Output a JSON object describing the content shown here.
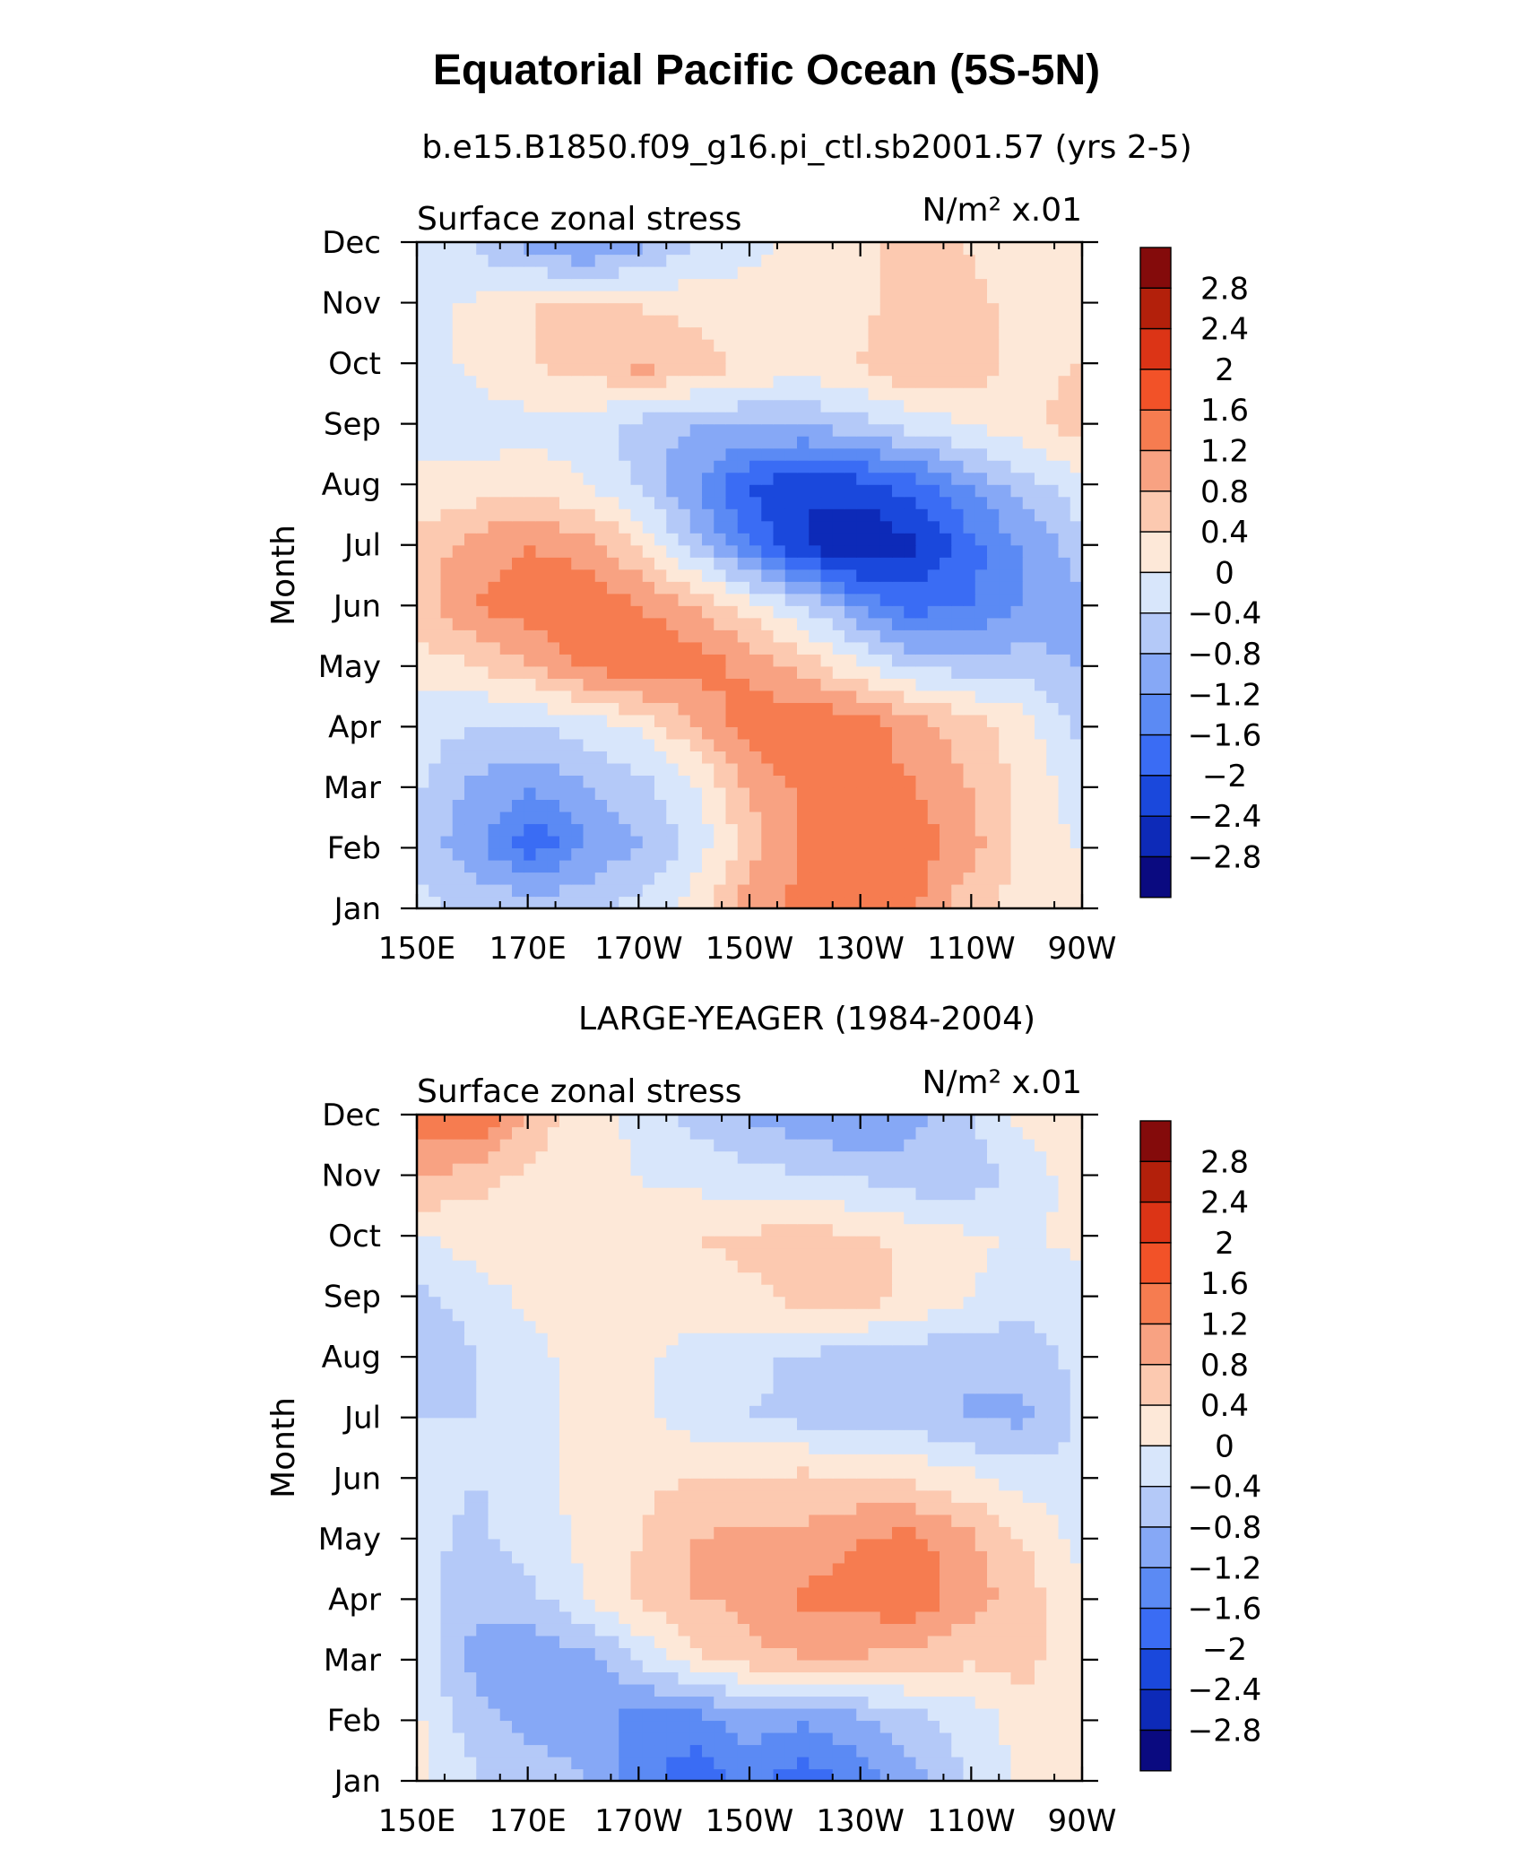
{
  "page": {
    "title": "Equatorial Pacific Ocean (5S-5N)"
  },
  "palette": [
    "#0a0a80",
    "#0d2ab8",
    "#1a48dc",
    "#3a6cf4",
    "#5b8af4",
    "#86a8f6",
    "#b4c9f8",
    "#d8e6fb",
    "#fde8d8",
    "#fcc9b0",
    "#f8a282",
    "#f67c50",
    "#f25228",
    "#dc3416",
    "#b3200b",
    "#840b0b"
  ],
  "chart_data": [
    {
      "type": "heatmap",
      "subtitle": "b.e15.B1850.f09_g16.pi_ctl.sb2001.57 (yrs 2-5)",
      "left_label": "Surface zonal stress",
      "units": "N/m² x.01",
      "ylabel": "Month",
      "x_ticks": [
        "150E",
        "170E",
        "170W",
        "150W",
        "130W",
        "110W",
        "90W"
      ],
      "y_ticks": [
        "Jan",
        "Feb",
        "Mar",
        "Apr",
        "May",
        "Jun",
        "Jul",
        "Aug",
        "Sep",
        "Oct",
        "Nov",
        "Dec"
      ],
      "colorbar_labels": [
        "2.8",
        "2.4",
        "2",
        "1.6",
        "1.2",
        "0.8",
        "0.4",
        "0",
        "−0.4",
        "−0.8",
        "−1.2",
        "−1.6",
        "−2",
        "−2.4",
        "−2.8"
      ],
      "levels": [
        -2.8,
        -2.4,
        -2,
        -1.6,
        -1.2,
        -0.8,
        -0.4,
        0,
        0.4,
        0.8,
        1.2,
        1.6,
        2,
        2.4,
        2.8
      ],
      "x": [
        150,
        160,
        170,
        180,
        190,
        200,
        210,
        220,
        230,
        240,
        250,
        260,
        270
      ],
      "y": [
        "Jan",
        "Feb",
        "Mar",
        "Apr",
        "May",
        "Jun",
        "Jul",
        "Aug",
        "Sep",
        "Oct",
        "Nov",
        "Dec"
      ],
      "z": [
        [
          -0.3,
          -0.6,
          -0.6,
          -0.6,
          -0.3,
          0.2,
          1.0,
          1.3,
          1.4,
          1.3,
          0.6,
          0.2,
          0.0
        ],
        [
          -0.6,
          -1.1,
          -1.9,
          -1.2,
          -0.8,
          -0.3,
          0.6,
          1.3,
          1.6,
          1.4,
          1.0,
          0.3,
          0.0
        ],
        [
          -0.4,
          -0.9,
          -1.1,
          -0.8,
          -0.5,
          0.0,
          0.9,
          1.3,
          1.4,
          1.2,
          0.8,
          0.3,
          -0.2
        ],
        [
          -0.2,
          -0.4,
          -0.4,
          -0.2,
          0.1,
          0.8,
          1.4,
          1.6,
          1.4,
          1.0,
          0.6,
          0.2,
          -0.5
        ],
        [
          0.2,
          0.4,
          0.8,
          1.3,
          1.6,
          1.4,
          1.1,
          0.6,
          0.0,
          -0.5,
          -0.6,
          -0.6,
          -0.8
        ],
        [
          0.7,
          1.2,
          1.5,
          1.5,
          1.2,
          0.8,
          0.2,
          -0.4,
          -1.2,
          -1.8,
          -1.6,
          -1.2,
          -1.0
        ],
        [
          0.6,
          1.0,
          1.2,
          1.0,
          0.4,
          -0.6,
          -1.6,
          -2.4,
          -2.9,
          -2.5,
          -1.8,
          -1.2,
          -0.6
        ],
        [
          0.1,
          0.2,
          0.3,
          0.0,
          -0.5,
          -1.2,
          -2.0,
          -2.4,
          -2.2,
          -1.8,
          -1.2,
          -0.6,
          -0.2
        ],
        [
          -0.2,
          -0.2,
          -0.2,
          -0.2,
          -0.6,
          -0.8,
          -0.8,
          -0.8,
          -0.6,
          -0.3,
          0.0,
          0.2,
          0.6
        ],
        [
          -0.2,
          0.1,
          0.4,
          0.5,
          0.9,
          0.6,
          0.3,
          0.2,
          0.4,
          0.8,
          0.6,
          0.3,
          0.4
        ],
        [
          -0.1,
          0.1,
          0.4,
          0.5,
          0.4,
          0.3,
          0.2,
          0.1,
          0.3,
          0.6,
          0.5,
          0.3,
          0.2
        ],
        [
          -0.2,
          -0.4,
          -0.9,
          -1.2,
          -0.8,
          -0.4,
          -0.1,
          0.1,
          0.3,
          0.5,
          0.4,
          0.2,
          0.1
        ]
      ]
    },
    {
      "type": "heatmap",
      "subtitle": "LARGE-YEAGER (1984-2004)",
      "left_label": "Surface zonal stress",
      "units": "N/m² x.01",
      "ylabel": "Month",
      "x_ticks": [
        "150E",
        "170E",
        "170W",
        "150W",
        "130W",
        "110W",
        "90W"
      ],
      "y_ticks": [
        "Jan",
        "Feb",
        "Mar",
        "Apr",
        "May",
        "Jun",
        "Jul",
        "Aug",
        "Sep",
        "Oct",
        "Nov",
        "Dec"
      ],
      "colorbar_labels": [
        "2.8",
        "2.4",
        "2",
        "1.6",
        "1.2",
        "0.8",
        "0.4",
        "0",
        "−0.4",
        "−0.8",
        "−1.2",
        "−1.6",
        "−2",
        "−2.4",
        "−2.8"
      ],
      "levels": [
        -2.8,
        -2.4,
        -2,
        -1.6,
        -1.2,
        -0.8,
        -0.4,
        0,
        0.4,
        0.8,
        1.2,
        1.6,
        2,
        2.4,
        2.8
      ],
      "x": [
        150,
        160,
        170,
        180,
        190,
        200,
        210,
        220,
        230,
        240,
        250,
        260,
        270
      ],
      "y": [
        "Jan",
        "Feb",
        "Mar",
        "Apr",
        "May",
        "Jun",
        "Jul",
        "Aug",
        "Sep",
        "Oct",
        "Nov",
        "Dec"
      ],
      "z": [
        [
          0.1,
          -0.4,
          -0.6,
          -0.8,
          -1.4,
          -1.9,
          -1.4,
          -1.8,
          -1.4,
          -0.9,
          -0.4,
          0.1,
          0.1
        ],
        [
          0.0,
          -0.7,
          -1.0,
          -1.1,
          -1.3,
          -1.3,
          -1.0,
          -1.1,
          -0.8,
          -0.5,
          -0.2,
          0.2,
          0.2
        ],
        [
          -0.2,
          -1.0,
          -1.1,
          -0.9,
          -0.3,
          0.3,
          0.7,
          0.8,
          0.8,
          0.7,
          0.5,
          0.6,
          0.1
        ],
        [
          -0.3,
          -0.6,
          -0.5,
          0.0,
          0.5,
          0.8,
          0.9,
          1.3,
          1.4,
          1.5,
          1.0,
          0.6,
          0.1
        ],
        [
          -0.3,
          -0.5,
          -0.2,
          0.1,
          0.4,
          0.8,
          0.9,
          0.9,
          1.2,
          1.3,
          0.9,
          0.4,
          -0.1
        ],
        [
          -0.3,
          -0.4,
          -0.1,
          0.1,
          0.3,
          0.4,
          0.4,
          0.5,
          0.4,
          0.3,
          0.1,
          -0.2,
          -0.3
        ],
        [
          -0.4,
          -0.4,
          -0.1,
          0.1,
          0.1,
          -0.2,
          -0.4,
          -0.5,
          -0.6,
          -0.6,
          -0.8,
          -0.9,
          -0.4
        ],
        [
          -0.8,
          -0.4,
          -0.1,
          0.1,
          0.1,
          -0.2,
          -0.3,
          -0.5,
          -0.6,
          -0.7,
          -0.8,
          -0.7,
          -0.3
        ],
        [
          -0.5,
          -0.2,
          0.1,
          0.2,
          0.2,
          0.2,
          0.3,
          0.5,
          0.6,
          0.3,
          0.0,
          -0.2,
          -0.2
        ],
        [
          -0.1,
          0.2,
          0.2,
          0.1,
          0.2,
          0.4,
          0.5,
          0.6,
          0.5,
          0.3,
          0.1,
          -0.1,
          0.1
        ],
        [
          0.8,
          0.5,
          0.3,
          0.1,
          0.0,
          -0.1,
          -0.2,
          -0.3,
          -0.4,
          -0.6,
          -0.6,
          -0.3,
          0.2
        ],
        [
          1.4,
          1.6,
          0.6,
          0.2,
          -0.1,
          -0.5,
          -0.8,
          -1.0,
          -1.2,
          -0.9,
          -0.5,
          0.1,
          0.2
        ]
      ]
    }
  ]
}
